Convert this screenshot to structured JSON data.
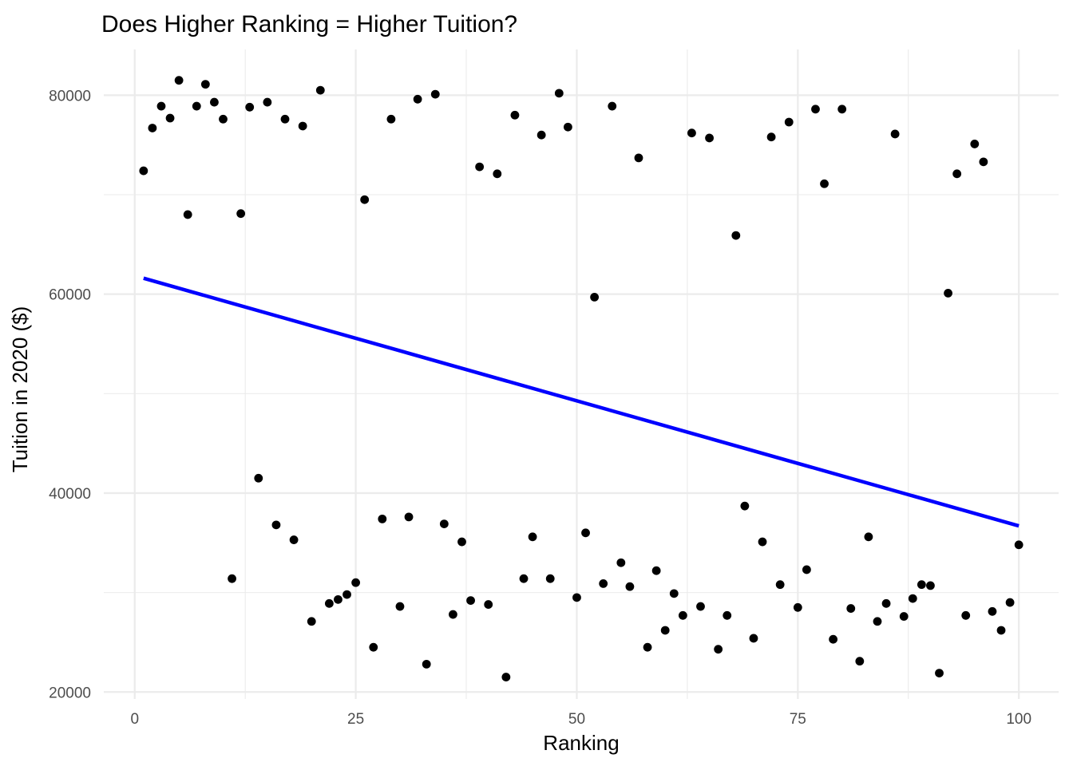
{
  "chart_data": {
    "type": "scatter",
    "title": "Does Higher Ranking = Higher Tuition?",
    "xlabel": "Ranking",
    "ylabel": "Tuition in 2020 ($)",
    "xlim": [
      -3.5,
      104.5
    ],
    "ylim": [
      19300,
      84600
    ],
    "x_ticks": [
      0,
      25,
      50,
      75,
      100
    ],
    "x_tick_labels": [
      "0",
      "25",
      "50",
      "75",
      "100"
    ],
    "x_minor_ticks": [
      12.5,
      37.5,
      62.5,
      87.5
    ],
    "y_ticks": [
      20000,
      40000,
      60000,
      80000
    ],
    "y_tick_labels": [
      "20000",
      "40000",
      "60000",
      "80000"
    ],
    "y_minor_ticks": [
      30000,
      50000,
      70000
    ],
    "grid": true,
    "point_color": "#000000",
    "line_color": "#0000ff",
    "points": [
      [
        1,
        72400
      ],
      [
        2,
        76700
      ],
      [
        3,
        78900
      ],
      [
        4,
        77700
      ],
      [
        5,
        81500
      ],
      [
        6,
        68000
      ],
      [
        7,
        78900
      ],
      [
        8,
        81100
      ],
      [
        9,
        79300
      ],
      [
        10,
        77600
      ],
      [
        11,
        31400
      ],
      [
        12,
        68100
      ],
      [
        13,
        78800
      ],
      [
        14,
        41500
      ],
      [
        15,
        79300
      ],
      [
        16,
        36800
      ],
      [
        17,
        77600
      ],
      [
        18,
        35300
      ],
      [
        19,
        76900
      ],
      [
        20,
        27100
      ],
      [
        21,
        80500
      ],
      [
        22,
        28900
      ],
      [
        23,
        29300
      ],
      [
        24,
        29800
      ],
      [
        25,
        31000
      ],
      [
        26,
        69500
      ],
      [
        27,
        24500
      ],
      [
        28,
        37400
      ],
      [
        29,
        77600
      ],
      [
        30,
        28600
      ],
      [
        31,
        37600
      ],
      [
        32,
        79600
      ],
      [
        33,
        22800
      ],
      [
        34,
        80100
      ],
      [
        35,
        36900
      ],
      [
        36,
        27800
      ],
      [
        37,
        35100
      ],
      [
        38,
        29200
      ],
      [
        39,
        72800
      ],
      [
        40,
        28800
      ],
      [
        41,
        72100
      ],
      [
        42,
        21500
      ],
      [
        43,
        78000
      ],
      [
        44,
        31400
      ],
      [
        45,
        35600
      ],
      [
        46,
        76000
      ],
      [
        47,
        31400
      ],
      [
        48,
        80200
      ],
      [
        49,
        76800
      ],
      [
        50,
        29500
      ],
      [
        51,
        36000
      ],
      [
        52,
        59700
      ],
      [
        53,
        30900
      ],
      [
        54,
        78900
      ],
      [
        55,
        33000
      ],
      [
        56,
        30600
      ],
      [
        57,
        73700
      ],
      [
        58,
        24500
      ],
      [
        59,
        32200
      ],
      [
        60,
        26200
      ],
      [
        61,
        29900
      ],
      [
        62,
        27700
      ],
      [
        63,
        76200
      ],
      [
        64,
        28600
      ],
      [
        65,
        75700
      ],
      [
        66,
        24300
      ],
      [
        67,
        27700
      ],
      [
        68,
        65900
      ],
      [
        69,
        38700
      ],
      [
        70,
        25400
      ],
      [
        71,
        35100
      ],
      [
        72,
        75800
      ],
      [
        73,
        30800
      ],
      [
        74,
        77300
      ],
      [
        75,
        28500
      ],
      [
        76,
        32300
      ],
      [
        77,
        78600
      ],
      [
        78,
        71100
      ],
      [
        79,
        25300
      ],
      [
        80,
        78600
      ],
      [
        81,
        28400
      ],
      [
        82,
        23100
      ],
      [
        83,
        35600
      ],
      [
        84,
        27100
      ],
      [
        85,
        28900
      ],
      [
        86,
        76100
      ],
      [
        87,
        27600
      ],
      [
        88,
        29400
      ],
      [
        89,
        30800
      ],
      [
        90,
        30700
      ],
      [
        91,
        21900
      ],
      [
        92,
        60100
      ],
      [
        93,
        72100
      ],
      [
        94,
        27700
      ],
      [
        95,
        75100
      ],
      [
        96,
        73300
      ],
      [
        97,
        28100
      ],
      [
        98,
        26200
      ],
      [
        99,
        29000
      ],
      [
        100,
        34800
      ]
    ],
    "trend_line": {
      "x": [
        1,
        100
      ],
      "y": [
        61600,
        36700
      ]
    }
  }
}
